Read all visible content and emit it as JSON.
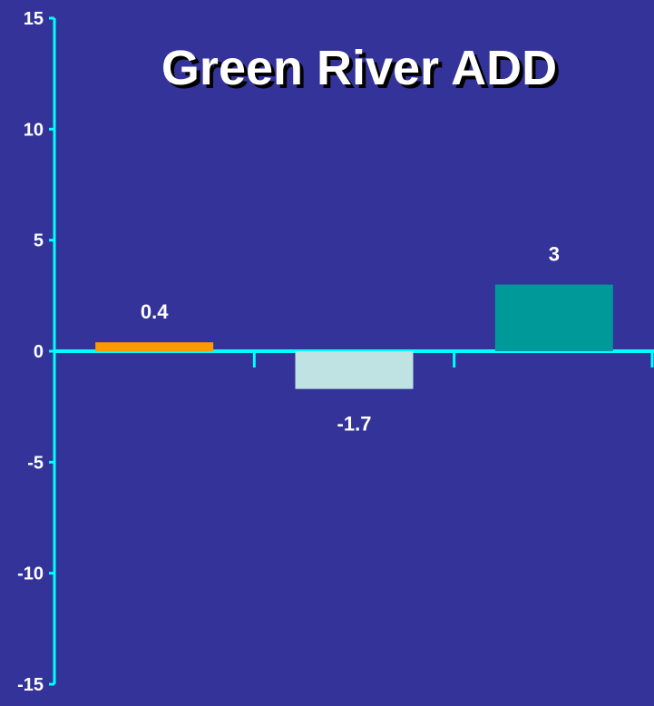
{
  "chart_data": {
    "type": "bar",
    "title": "Green River ADD",
    "categories": [
      "",
      "",
      ""
    ],
    "values": [
      0.4,
      -1.7,
      3
    ],
    "data_labels": [
      "0.4",
      "-1.7",
      "3"
    ],
    "bar_colors": [
      "#ff9900",
      "#bfe3e3",
      "#009999"
    ],
    "ylim": [
      -15,
      15
    ],
    "yticks": [
      15,
      10,
      5,
      0,
      -5,
      -10,
      -15
    ],
    "ytick_labels": [
      "15",
      "10",
      "5",
      "0",
      "-5",
      "-10",
      "-15"
    ],
    "grid": false,
    "legend": "none"
  },
  "colors": {
    "background": "#333399",
    "axis": "#00ffff",
    "text": "#ffffff",
    "title_shadow": "#000000"
  }
}
